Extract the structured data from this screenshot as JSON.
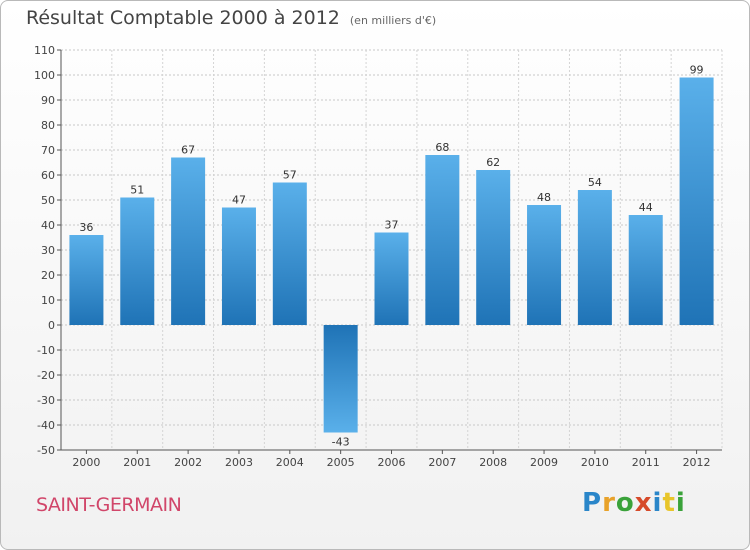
{
  "title": "Résultat Comptable 2000 à 2012",
  "subtitle": "(en milliers d'€)",
  "town": "SAINT-GERMAIN",
  "logo": [
    "P",
    "r",
    "o",
    "x",
    "i",
    "t",
    "i"
  ],
  "colors": {
    "bar_light": "#5aaee8",
    "bar_dark": "#1f75b8",
    "grid": "#cccccc",
    "axis": "#555555"
  },
  "chart_data": {
    "type": "bar",
    "categories": [
      "2000",
      "2001",
      "2002",
      "2003",
      "2004",
      "2005",
      "2006",
      "2007",
      "2008",
      "2009",
      "2010",
      "2011",
      "2012"
    ],
    "values": [
      36,
      51,
      67,
      47,
      57,
      -43,
      37,
      68,
      62,
      48,
      54,
      44,
      99
    ],
    "ylim": [
      -50,
      110
    ],
    "yticks": [
      110,
      100,
      90,
      80,
      70,
      60,
      50,
      40,
      30,
      20,
      10,
      0,
      -10,
      -20,
      -30,
      -40,
      -50
    ],
    "grid": true
  }
}
